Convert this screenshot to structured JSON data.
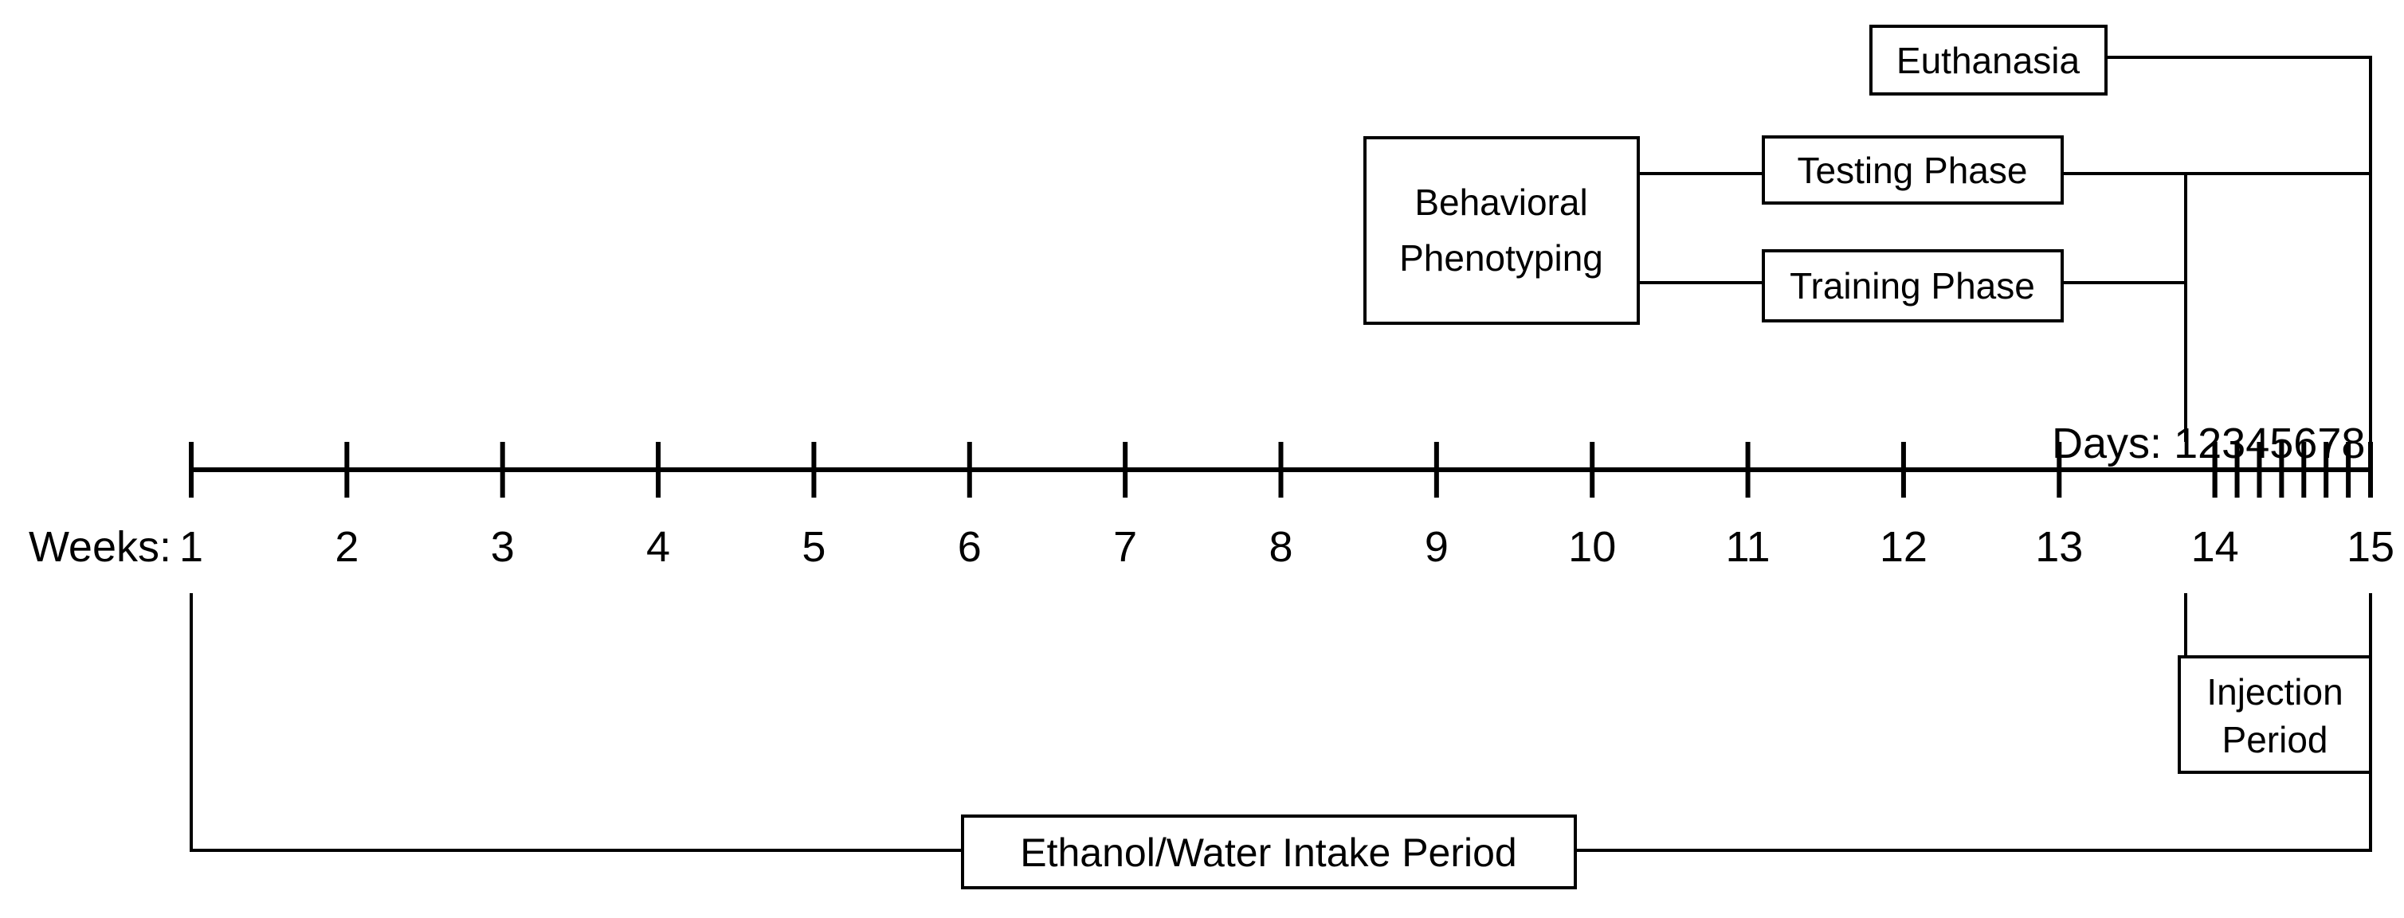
{
  "axis": {
    "weeks_label": "Weeks:",
    "weeks": [
      "1",
      "2",
      "3",
      "4",
      "5",
      "6",
      "7",
      "8",
      "9",
      "10",
      "11",
      "12",
      "13",
      "14",
      "15"
    ],
    "days_label": "Days:",
    "days": [
      "1",
      "2",
      "3",
      "4",
      "5",
      "6",
      "7",
      "8"
    ]
  },
  "boxes": {
    "euthanasia": "Euthanasia",
    "behavioral_line1": "Behavioral",
    "behavioral_line2": "Phenotyping",
    "testing_phase": "Testing Phase",
    "training_phase": "Training Phase",
    "injection_line1": "Injection",
    "injection_line2": "Period",
    "intake_period": "Ethanol/Water Intake Period"
  }
}
